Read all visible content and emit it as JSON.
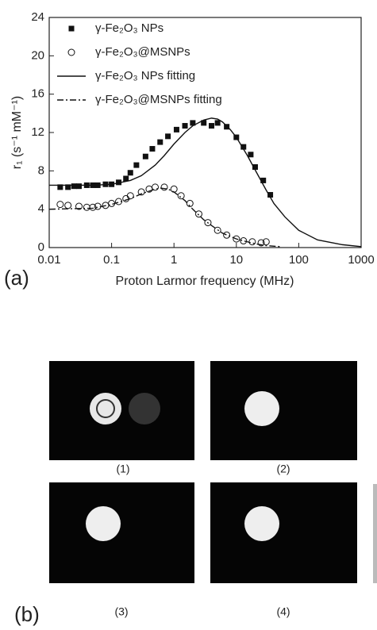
{
  "chart_data": {
    "type": "scatter",
    "panel_label": "(a)",
    "x_label": "Proton Larmor frequency (MHz)",
    "y_label": "r₁ (s⁻¹ mM⁻¹)",
    "xlim": [
      0.01,
      1000
    ],
    "xticks": [
      0.01,
      0.1,
      1,
      10,
      100,
      1000
    ],
    "xscale": "log",
    "ylim": [
      0,
      24
    ],
    "yticks": [
      0,
      4,
      8,
      12,
      16,
      20,
      24
    ],
    "legend": "upper left",
    "series": [
      {
        "name": "γ-Fe₂O₃ NPs",
        "color": "#111111",
        "style": "square",
        "x": [
          0.015,
          0.02,
          0.025,
          0.03,
          0.04,
          0.05,
          0.06,
          0.08,
          0.1,
          0.13,
          0.17,
          0.2,
          0.25,
          0.35,
          0.45,
          0.6,
          0.8,
          1.1,
          1.5,
          2,
          3,
          4,
          5,
          7,
          10,
          13,
          17,
          20,
          27,
          35
        ],
        "values": [
          6.3,
          6.3,
          6.4,
          6.4,
          6.5,
          6.5,
          6.5,
          6.6,
          6.6,
          6.8,
          7.2,
          7.8,
          8.6,
          9.5,
          10.3,
          11,
          11.6,
          12.3,
          12.7,
          13,
          13,
          12.7,
          13,
          12.6,
          11.5,
          10.5,
          9.7,
          8.4,
          7,
          5.5
        ]
      },
      {
        "name": "γ-Fe₂O₃@MSNPs",
        "color": "#111111",
        "style": "circle",
        "x": [
          0.015,
          0.02,
          0.03,
          0.04,
          0.05,
          0.06,
          0.08,
          0.1,
          0.13,
          0.17,
          0.2,
          0.3,
          0.4,
          0.5,
          0.7,
          1,
          1.3,
          1.8,
          2.5,
          3.5,
          5,
          7,
          10,
          13,
          18,
          25,
          30
        ],
        "values": [
          4.5,
          4.4,
          4.3,
          4.2,
          4.2,
          4.3,
          4.4,
          4.6,
          4.8,
          5.1,
          5.4,
          5.8,
          6.1,
          6.3,
          6.3,
          6.1,
          5.4,
          4.6,
          3.5,
          2.6,
          1.8,
          1.3,
          0.9,
          0.7,
          0.6,
          0.5,
          0.6
        ]
      },
      {
        "name": "γ-Fe₂O₃ NPs fitting",
        "color": "#111111",
        "style": "solid",
        "x": [
          0.01,
          0.05,
          0.1,
          0.2,
          0.3,
          0.5,
          0.7,
          1,
          1.5,
          2,
          3,
          4,
          5,
          6,
          8,
          10,
          15,
          20,
          30,
          40,
          60,
          100,
          200,
          500,
          1000
        ],
        "values": [
          6.5,
          6.5,
          6.6,
          7,
          7.5,
          8.6,
          9.6,
          10.8,
          12,
          12.7,
          13.3,
          13.5,
          13.4,
          13.1,
          12.3,
          11.5,
          9.6,
          8.1,
          6,
          4.6,
          3.2,
          1.8,
          0.8,
          0.3,
          0.1
        ]
      },
      {
        "name": "γ-Fe₂O₃@MSNPs fitting",
        "color": "#111111",
        "style": "dashdot",
        "x": [
          0.01,
          0.05,
          0.1,
          0.2,
          0.3,
          0.45,
          0.6,
          0.8,
          1,
          1.5,
          2,
          3,
          4,
          6,
          10,
          15,
          20,
          30,
          50
        ],
        "values": [
          4,
          4.1,
          4.5,
          5.1,
          5.6,
          6,
          6.2,
          6.1,
          5.8,
          4.9,
          4,
          2.9,
          2.3,
          1.5,
          0.9,
          0.6,
          0.4,
          0.2,
          0.1
        ]
      }
    ]
  },
  "figure_b": {
    "label": "(b)",
    "images": [
      {
        "label": "(1)"
      },
      {
        "label": "(2)"
      },
      {
        "label": "(3)"
      },
      {
        "label": "(4)"
      }
    ]
  }
}
